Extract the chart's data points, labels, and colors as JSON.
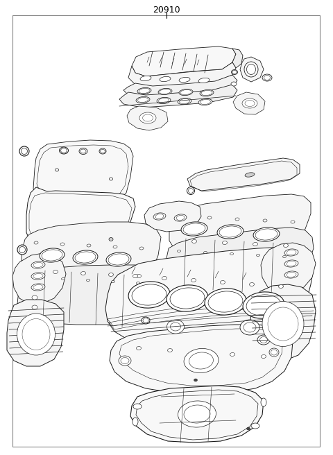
{
  "title": "20910",
  "bg_color": "#ffffff",
  "line_color": "#1a1a1a",
  "border_color": "#666666",
  "fig_width": 4.8,
  "fig_height": 6.56,
  "dpi": 100,
  "lw_main": 0.7,
  "lw_thin": 0.4,
  "lw_thick": 1.0
}
